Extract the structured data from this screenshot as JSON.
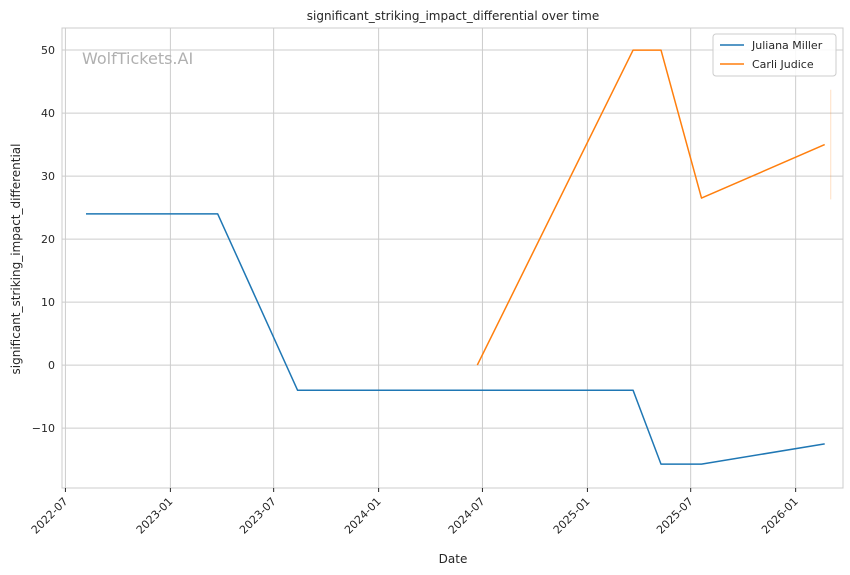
{
  "chart_data": {
    "type": "line",
    "title": "significant_striking_impact_differential over time",
    "xlabel": "Date",
    "ylabel": "significant_striking_impact_differential",
    "watermark": "WolfTickets.AI",
    "x_ticks": [
      "2022-07",
      "2023-01",
      "2023-07",
      "2024-01",
      "2024-07",
      "2025-01",
      "2025-07",
      "2026-01"
    ],
    "y_ticks": [
      -10,
      0,
      10,
      20,
      30,
      40,
      50
    ],
    "xlim": [
      "2022-06-25",
      "2026-03-25"
    ],
    "ylim": [
      -19.5,
      53.5
    ],
    "grid": true,
    "legend_position": "top-right",
    "colors": {
      "Juliana Miller": "#1f77b4",
      "Carli Judice": "#ff7f0e"
    },
    "series": [
      {
        "name": "Juliana Miller",
        "color": "#1f77b4",
        "points": [
          {
            "x": "2022-08-06",
            "y": 24
          },
          {
            "x": "2023-03-25",
            "y": 24
          },
          {
            "x": "2023-08-12",
            "y": -4
          },
          {
            "x": "2025-03-22",
            "y": -4
          },
          {
            "x": "2025-05-10",
            "y": -15.7
          },
          {
            "x": "2025-07-20",
            "y": -15.7
          },
          {
            "x": "2026-02-21",
            "y": -12.5
          }
        ]
      },
      {
        "name": "Carli Judice",
        "color": "#ff7f0e",
        "points": [
          {
            "x": "2024-06-22",
            "y": 0
          },
          {
            "x": "2025-03-22",
            "y": 50
          },
          {
            "x": "2025-05-10",
            "y": 50
          },
          {
            "x": "2025-07-20",
            "y": 26.5
          },
          {
            "x": "2026-02-21",
            "y": 35
          }
        ]
      }
    ],
    "error_bar": {
      "series": "Carli Judice",
      "x": "2026-02-21",
      "y_low": 26.3,
      "y_high": 43.7
    }
  }
}
